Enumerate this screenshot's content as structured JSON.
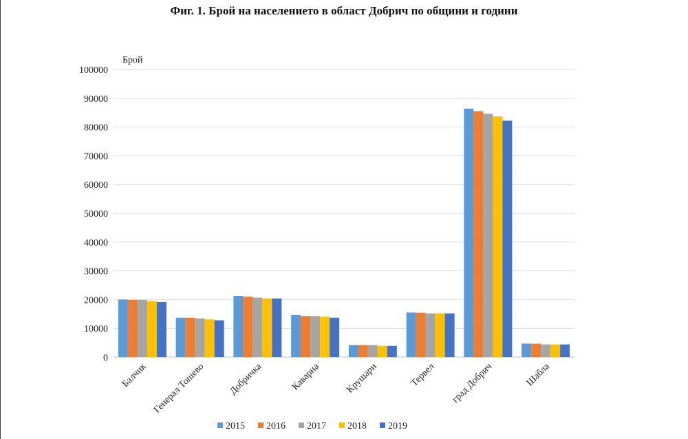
{
  "chart_data": {
    "type": "bar",
    "title": "Фиг. 1. Брой на населението в област Добрич по общини и години",
    "ylabel": "Брой",
    "xlabel": "",
    "ylim": [
      0,
      100000
    ],
    "yticks": [
      "0",
      "10000",
      "20000",
      "30000",
      "40000",
      "50000",
      "60000",
      "70000",
      "80000",
      "90000",
      "100000"
    ],
    "grid": true,
    "legend": "bottom",
    "categories": [
      "Балчик",
      "Генерал Тошево",
      "Добричка",
      "Каварна",
      "Крушари",
      "Тервел",
      "град Добрич",
      "Шабла"
    ],
    "series": [
      {
        "name": "2015",
        "color": "#5B9BD5",
        "values": [
          20000,
          13700,
          21300,
          14600,
          4200,
          15500,
          86400,
          4700
        ]
      },
      {
        "name": "2016",
        "color": "#ED7D31",
        "values": [
          19850,
          13700,
          21050,
          14300,
          4200,
          15400,
          85500,
          4650
        ]
      },
      {
        "name": "2017",
        "color": "#A5A5A5",
        "values": [
          19850,
          13450,
          20700,
          14300,
          4200,
          15200,
          84600,
          4400
        ]
      },
      {
        "name": "2018",
        "color": "#FFC000",
        "values": [
          19500,
          13100,
          20400,
          14050,
          3900,
          15200,
          83700,
          4400
        ]
      },
      {
        "name": "2019",
        "color": "#4472C4",
        "values": [
          19150,
          12800,
          20400,
          13700,
          3900,
          15200,
          82200,
          4400
        ]
      }
    ]
  }
}
